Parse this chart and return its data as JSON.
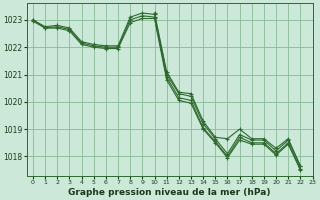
{
  "background_color": "#cce8d8",
  "grid_color": "#88bb99",
  "line_color": "#2d6a2d",
  "title": "Graphe pression niveau de la mer (hPa)",
  "xlim": [
    -0.5,
    23
  ],
  "ylim": [
    1017.3,
    1023.6
  ],
  "yticks": [
    1018,
    1019,
    1020,
    1021,
    1022,
    1023
  ],
  "xticks": [
    0,
    1,
    2,
    3,
    4,
    5,
    6,
    7,
    8,
    9,
    10,
    11,
    12,
    13,
    14,
    15,
    16,
    17,
    18,
    19,
    20,
    21,
    22,
    23
  ],
  "series": [
    [
      1023.0,
      1022.75,
      1022.8,
      1022.7,
      1022.2,
      1022.1,
      1022.05,
      1022.05,
      1023.1,
      1023.25,
      1023.2,
      1021.0,
      1020.3,
      1020.2,
      1019.2,
      1018.65,
      1018.1,
      1018.8,
      1018.6,
      1018.6,
      1018.2,
      1018.6,
      1017.65,
      null
    ],
    [
      1023.0,
      1022.7,
      1022.75,
      1022.65,
      1022.15,
      1022.05,
      1022.0,
      1022.0,
      1023.0,
      1023.15,
      1023.1,
      1020.9,
      1020.15,
      1020.05,
      1019.05,
      1018.55,
      1018.0,
      1018.7,
      1018.5,
      1018.5,
      1018.1,
      1018.5,
      1017.55,
      null
    ],
    [
      1022.95,
      1022.7,
      1022.7,
      1022.6,
      1022.1,
      1022.0,
      1021.95,
      1021.95,
      1022.9,
      1023.05,
      1023.05,
      1020.8,
      1020.05,
      1019.95,
      1019.0,
      1018.5,
      1017.95,
      1018.6,
      1018.45,
      1018.45,
      1018.05,
      1018.45,
      1017.5,
      null
    ],
    [
      null,
      null,
      null,
      null,
      null,
      null,
      null,
      null,
      null,
      null,
      1023.25,
      1021.1,
      1020.35,
      1020.3,
      1019.3,
      1018.7,
      1018.65,
      1019.0,
      1018.65,
      1018.65,
      1018.3,
      1018.65,
      1017.65,
      null
    ]
  ],
  "title_fontsize": 6.5,
  "tick_fontsize": 5.5
}
